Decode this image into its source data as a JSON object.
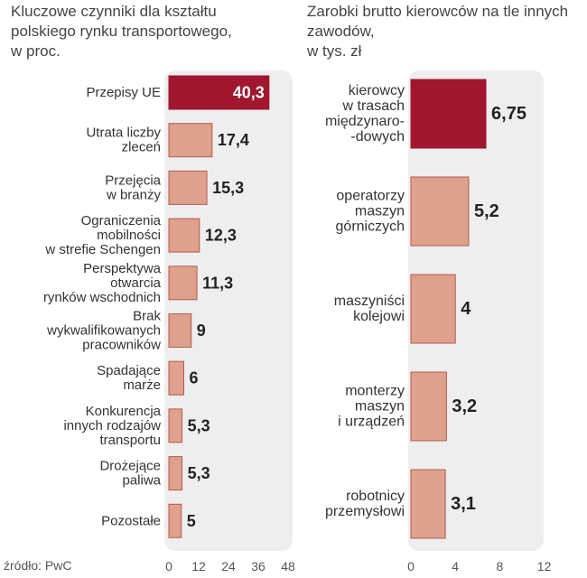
{
  "chart_data": [
    {
      "type": "bar",
      "orientation": "horizontal",
      "title_lines": [
        "Kluczowe czynniki dla kształtu",
        "polskiego rynku transportowego,",
        "w proc."
      ],
      "categories": [
        [
          "Przepisy UE"
        ],
        [
          "Utrata liczby",
          "zleceń"
        ],
        [
          "Przejęcia",
          "w branży"
        ],
        [
          "Ograniczenia",
          "mobilności",
          "w strefie Schengen"
        ],
        [
          "Perspektywa",
          "otwarcia",
          "rynków wschodnich"
        ],
        [
          "Brak",
          "wykwalifikowanych",
          "pracowników"
        ],
        [
          "Spadające",
          "marże"
        ],
        [
          "Konkurencja",
          "innych rodzajów",
          "transportu"
        ],
        [
          "Drożejące",
          "paliwa"
        ],
        [
          "Pozostałe"
        ]
      ],
      "values": [
        40.3,
        17.4,
        15.3,
        12.3,
        11.3,
        9,
        6,
        5.3,
        5.3,
        5
      ],
      "value_labels": [
        "40,3",
        "17,4",
        "15,3",
        "12,3",
        "11,3",
        "9",
        "6",
        "5,3",
        "5,3",
        "5"
      ],
      "highlight_index": 0,
      "xlim": [
        0,
        48
      ],
      "xticks": [
        0,
        12,
        24,
        36,
        48
      ],
      "grid": false,
      "colors": {
        "bar": "#dea18e",
        "highlight": "#a0172f",
        "border": "#b55a4d",
        "panel": "#eeeeee"
      }
    },
    {
      "type": "bar",
      "orientation": "horizontal",
      "title_lines": [
        "Zarobki brutto kierowców na tle innych",
        "zawodów,",
        "w tys. zł"
      ],
      "categories": [
        [
          "kierowcy",
          "w trasach",
          "międzynaro-",
          "-dowych"
        ],
        [
          "operatorzy",
          "maszyn",
          "górniczych"
        ],
        [
          "maszyniści",
          "kolejowi"
        ],
        [
          "monterzy",
          "maszyn",
          "i urządzeń"
        ],
        [
          "robotnicy",
          "przemysłowi"
        ]
      ],
      "values": [
        6.75,
        5.2,
        4,
        3.2,
        3.1
      ],
      "value_labels": [
        "6,75",
        "5,2",
        "4",
        "3,2",
        "3,1"
      ],
      "highlight_index": 0,
      "xlim": [
        0,
        12
      ],
      "xticks": [
        0,
        4,
        8,
        12
      ],
      "grid": false,
      "colors": {
        "bar": "#dea18e",
        "highlight": "#a0172f",
        "border": "#b55a4d",
        "panel": "#eeeeee"
      }
    }
  ],
  "source": "źródło: PwC"
}
